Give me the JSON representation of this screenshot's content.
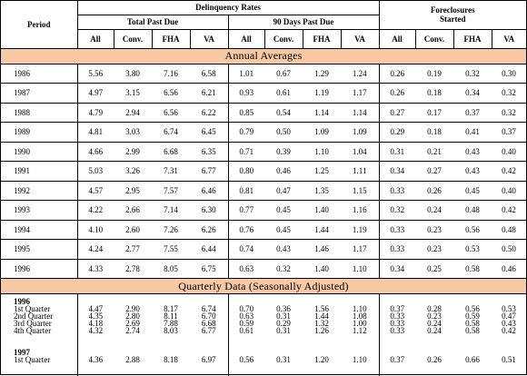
{
  "header": {
    "period": "Period",
    "delinquency": "Delinquency Rates",
    "total_past_due": "Total Past Due",
    "days90": "90 Days Past Due",
    "foreclosures_line1": "Foreclosures",
    "foreclosures_line2": "Started",
    "cols": [
      "All",
      "Conv.",
      "FHA",
      "VA"
    ]
  },
  "annual_title": "Annual Averages",
  "annual": [
    {
      "p": "1986",
      "v": [
        "5.56",
        "3.80",
        "7.16",
        "6.58",
        "1.01",
        "0.67",
        "1.29",
        "1.24",
        "0.26",
        "0.19",
        "0.32",
        "0.30"
      ]
    },
    {
      "p": "1987",
      "v": [
        "4.97",
        "3.15",
        "6.56",
        "6.21",
        "0.93",
        "0.61",
        "1.19",
        "1.17",
        "0.26",
        "0.18",
        "0.34",
        "0.32"
      ]
    },
    {
      "p": "1988",
      "v": [
        "4.79",
        "2.94",
        "6.56",
        "6.22",
        "0.85",
        "0.54",
        "1.14",
        "1.14",
        "0.27",
        "0.17",
        "0.37",
        "0.32"
      ]
    },
    {
      "p": "1989",
      "v": [
        "4.81",
        "3.03",
        "6.74",
        "6.45",
        "0.79",
        "0.50",
        "1.09",
        "1.09",
        "0.29",
        "0.18",
        "0.41",
        "0.37"
      ]
    },
    {
      "p": "1990",
      "v": [
        "4.66",
        "2.99",
        "6.68",
        "6.35",
        "0.71",
        "0.39",
        "1.10",
        "1.04",
        "0.31",
        "0.21",
        "0.43",
        "0.40"
      ]
    },
    {
      "p": "1991",
      "v": [
        "5.03",
        "3.26",
        "7.31",
        "6.77",
        "0.80",
        "0.46",
        "1.25",
        "1.11",
        "0.34",
        "0.27",
        "0.43",
        "0.42"
      ]
    },
    {
      "p": "1992",
      "v": [
        "4.57",
        "2.95",
        "7.57",
        "6.46",
        "0.81",
        "0.47",
        "1.35",
        "1.15",
        "0.33",
        "0.26",
        "0.45",
        "0.40"
      ]
    },
    {
      "p": "1993",
      "v": [
        "4.22",
        "2.66",
        "7.14",
        "6.30",
        "0.77",
        "0.45",
        "1.40",
        "1.16",
        "0.32",
        "0.24",
        "0.48",
        "0.42"
      ]
    },
    {
      "p": "1994",
      "v": [
        "4.10",
        "2.60",
        "7.26",
        "6.26",
        "0.76",
        "0.45",
        "1.44",
        "1.19",
        "0.33",
        "0.23",
        "0.56",
        "0.48"
      ]
    },
    {
      "p": "1995",
      "v": [
        "4.24",
        "2.77",
        "7.55",
        "6.44",
        "0.74",
        "0.43",
        "1.46",
        "1.17",
        "0.33",
        "0.23",
        "0.53",
        "0.50"
      ]
    },
    {
      "p": "1996",
      "v": [
        "4.33",
        "2.78",
        "8.05",
        "6.75",
        "0.63",
        "0.32",
        "1.40",
        "1.10",
        "0.34",
        "0.25",
        "0.58",
        "0.46"
      ]
    }
  ],
  "quarterly_title": "Quarterly Data (Seasonally Adjusted)",
  "q1996": {
    "year": "1996",
    "rows": [
      {
        "p": "1st Quarter",
        "v": [
          "4.47",
          "2.90",
          "8.17",
          "6.74",
          "0.70",
          "0.36",
          "1.56",
          "1.10",
          "0.37",
          "0.28",
          "0.56",
          "0.53"
        ]
      },
      {
        "p": "2nd Quarter",
        "v": [
          "4.35",
          "2.80",
          "8.11",
          "6.70",
          "0.63",
          "0.31",
          "1.44",
          "1.08",
          "0.33",
          "0.23",
          "0.59",
          "0.47"
        ]
      },
      {
        "p": "3rd Quarter",
        "v": [
          "4.18",
          "2.69",
          "7.88",
          "6.68",
          "0.59",
          "0.29",
          "1.32",
          "1.00",
          "0.33",
          "0.24",
          "0.58",
          "0.43"
        ]
      },
      {
        "p": "4th Quarter",
        "v": [
          "4.32",
          "2.74",
          "8.03",
          "6.77",
          "0.61",
          "0.31",
          "1.26",
          "1.12",
          "0.33",
          "0.24",
          "0.58",
          "0.42"
        ]
      }
    ]
  },
  "q1997": {
    "year": "1997",
    "rows": [
      {
        "p": "1st Quarter",
        "v": [
          "4.36",
          "2.88",
          "8.18",
          "6.97",
          "0.56",
          "0.31",
          "1.20",
          "1.10",
          "0.37",
          "0.26",
          "0.66",
          "0.51"
        ]
      }
    ]
  }
}
